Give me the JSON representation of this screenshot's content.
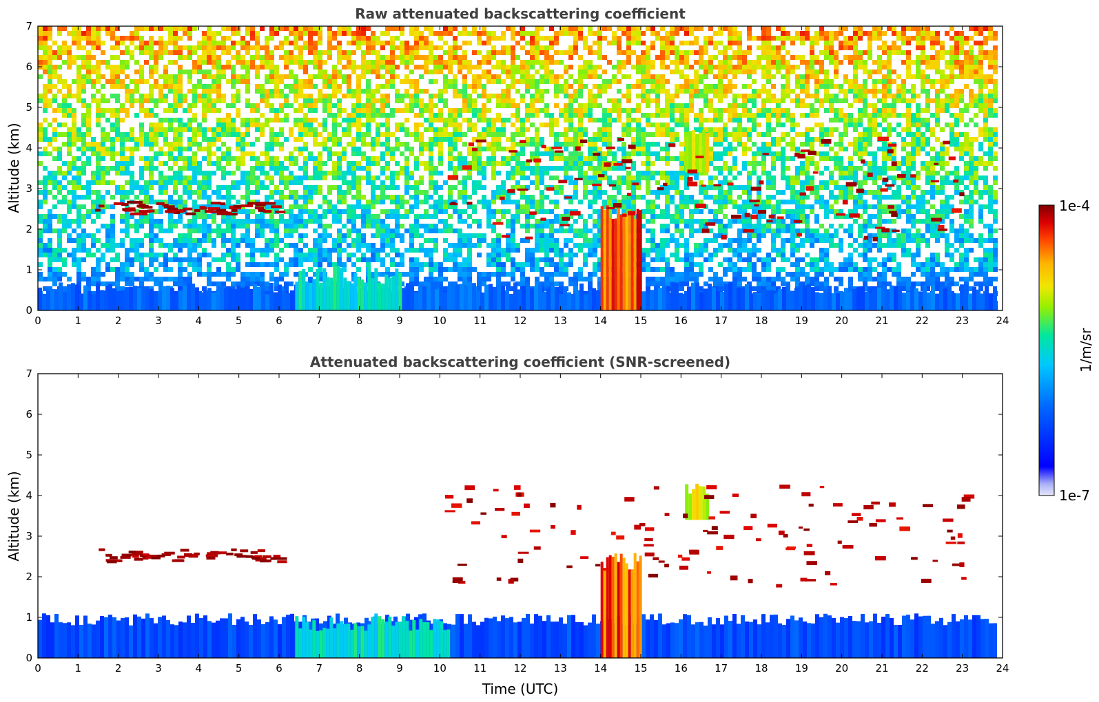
{
  "chart_data": [
    {
      "type": "heatmap",
      "title": "Raw attenuated backscattering coefficient",
      "xlabel": "",
      "ylabel": "Altitude (km)",
      "xlim": [
        0,
        24
      ],
      "ylim": [
        0,
        7
      ],
      "xticks": [
        "0",
        "1",
        "2",
        "3",
        "4",
        "5",
        "6",
        "7",
        "8",
        "9",
        "10",
        "11",
        "12",
        "13",
        "14",
        "15",
        "16",
        "17",
        "18",
        "19",
        "20",
        "21",
        "22",
        "23",
        "24"
      ],
      "yticks": [
        "0",
        "1",
        "2",
        "3",
        "4",
        "5",
        "6",
        "7"
      ],
      "screened": false,
      "features": [
        {
          "name": "boundary layer",
          "x": [
            0,
            23.8
          ],
          "y": [
            0,
            0.7
          ],
          "level": 0.3
        },
        {
          "name": "aerosol plume",
          "x": [
            6.4,
            9.0
          ],
          "y": [
            0,
            1.1
          ],
          "level": 0.5
        },
        {
          "name": "cloud layer",
          "x": [
            1.4,
            6.0
          ],
          "y": [
            2.4,
            2.7
          ],
          "level": 1.0
        },
        {
          "name": "rain shaft",
          "x": [
            14.0,
            15.0
          ],
          "y": [
            0,
            2.6
          ],
          "level": 0.85
        },
        {
          "name": "ice cloud",
          "x": [
            16.1,
            16.7
          ],
          "y": [
            3.4,
            4.5
          ],
          "level": 0.7
        },
        {
          "name": "mid-level clouds",
          "x": [
            10.1,
            23.1
          ],
          "y": [
            1.8,
            4.9
          ],
          "level": 1.0
        }
      ]
    },
    {
      "type": "heatmap",
      "title": "Attenuated backscattering coefficient (SNR-screened)",
      "xlabel": "Time (UTC)",
      "ylabel": "Altitude (km)",
      "xlim": [
        0,
        24
      ],
      "ylim": [
        0,
        7
      ],
      "xticks": [
        "0",
        "1",
        "2",
        "3",
        "4",
        "5",
        "6",
        "7",
        "8",
        "9",
        "10",
        "11",
        "12",
        "13",
        "14",
        "15",
        "16",
        "17",
        "18",
        "19",
        "20",
        "21",
        "22",
        "23",
        "24"
      ],
      "yticks": [
        "0",
        "1",
        "2",
        "3",
        "4",
        "5",
        "6",
        "7"
      ],
      "screened": true,
      "features": [
        {
          "name": "boundary layer",
          "x": [
            0,
            23.8
          ],
          "y": [
            0,
            1.1
          ],
          "level": 0.25
        },
        {
          "name": "aerosol plume",
          "x": [
            6.4,
            10.2
          ],
          "y": [
            0,
            1.1
          ],
          "level": 0.5
        },
        {
          "name": "cloud layer",
          "x": [
            1.4,
            6.0
          ],
          "y": [
            2.4,
            2.7
          ],
          "level": 1.0
        },
        {
          "name": "rain shaft",
          "x": [
            14.0,
            15.0
          ],
          "y": [
            0,
            2.6
          ],
          "level": 0.85
        },
        {
          "name": "ice cloud",
          "x": [
            16.1,
            16.7
          ],
          "y": [
            3.4,
            4.3
          ],
          "level": 0.7
        },
        {
          "name": "mid-level clouds",
          "x": [
            10.1,
            23.1
          ],
          "y": [
            1.8,
            4.9
          ],
          "level": 1.0
        }
      ]
    }
  ],
  "colorbar": {
    "label": "1/m/sr",
    "max_label": "1e-4",
    "min_label": "1e-7",
    "scale": "log",
    "colormap": [
      "#e6e6fa",
      "#0000ff",
      "#00c8ff",
      "#00e6a0",
      "#d2f000",
      "#ffd200",
      "#ff6400",
      "#e60000",
      "#800000"
    ]
  }
}
